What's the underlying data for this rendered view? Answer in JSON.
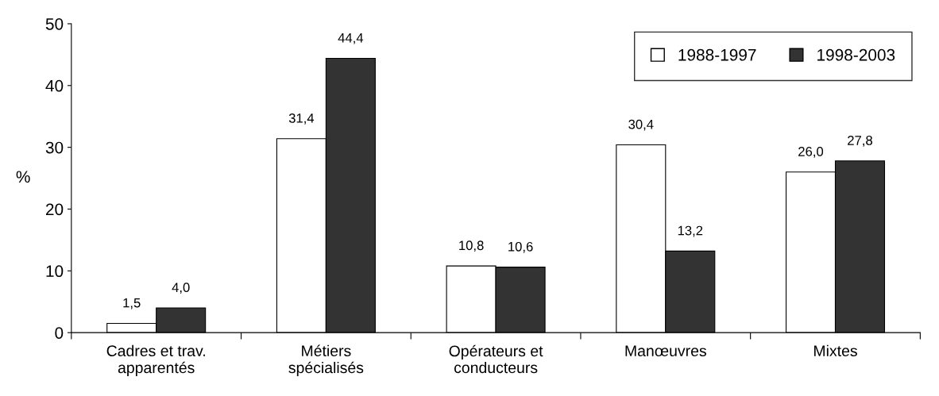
{
  "chart_data": {
    "type": "bar",
    "ylabel": "%",
    "categories": [
      "Cadres et trav. apparentés",
      "Métiers spécialisés",
      "Opérateurs et conducteurs",
      "Manœuvres",
      "Mixtes"
    ],
    "series": [
      {
        "name": "1988-1997",
        "color": "#ffffff",
        "values": [
          1.5,
          31.4,
          10.8,
          30.4,
          26.0
        ],
        "value_labels": [
          "1,5",
          "31,4",
          "10,8",
          "30,4",
          "26,0"
        ]
      },
      {
        "name": "1998-2003",
        "color": "#333333",
        "values": [
          4.0,
          44.4,
          10.6,
          13.2,
          27.8
        ],
        "value_labels": [
          "4,0",
          "44,4",
          "10,6",
          "13,2",
          "27,8"
        ]
      }
    ],
    "ylim": [
      0,
      50
    ],
    "yticks": [
      0,
      10,
      20,
      30,
      40,
      50
    ],
    "grid": false,
    "legend": "top right"
  }
}
